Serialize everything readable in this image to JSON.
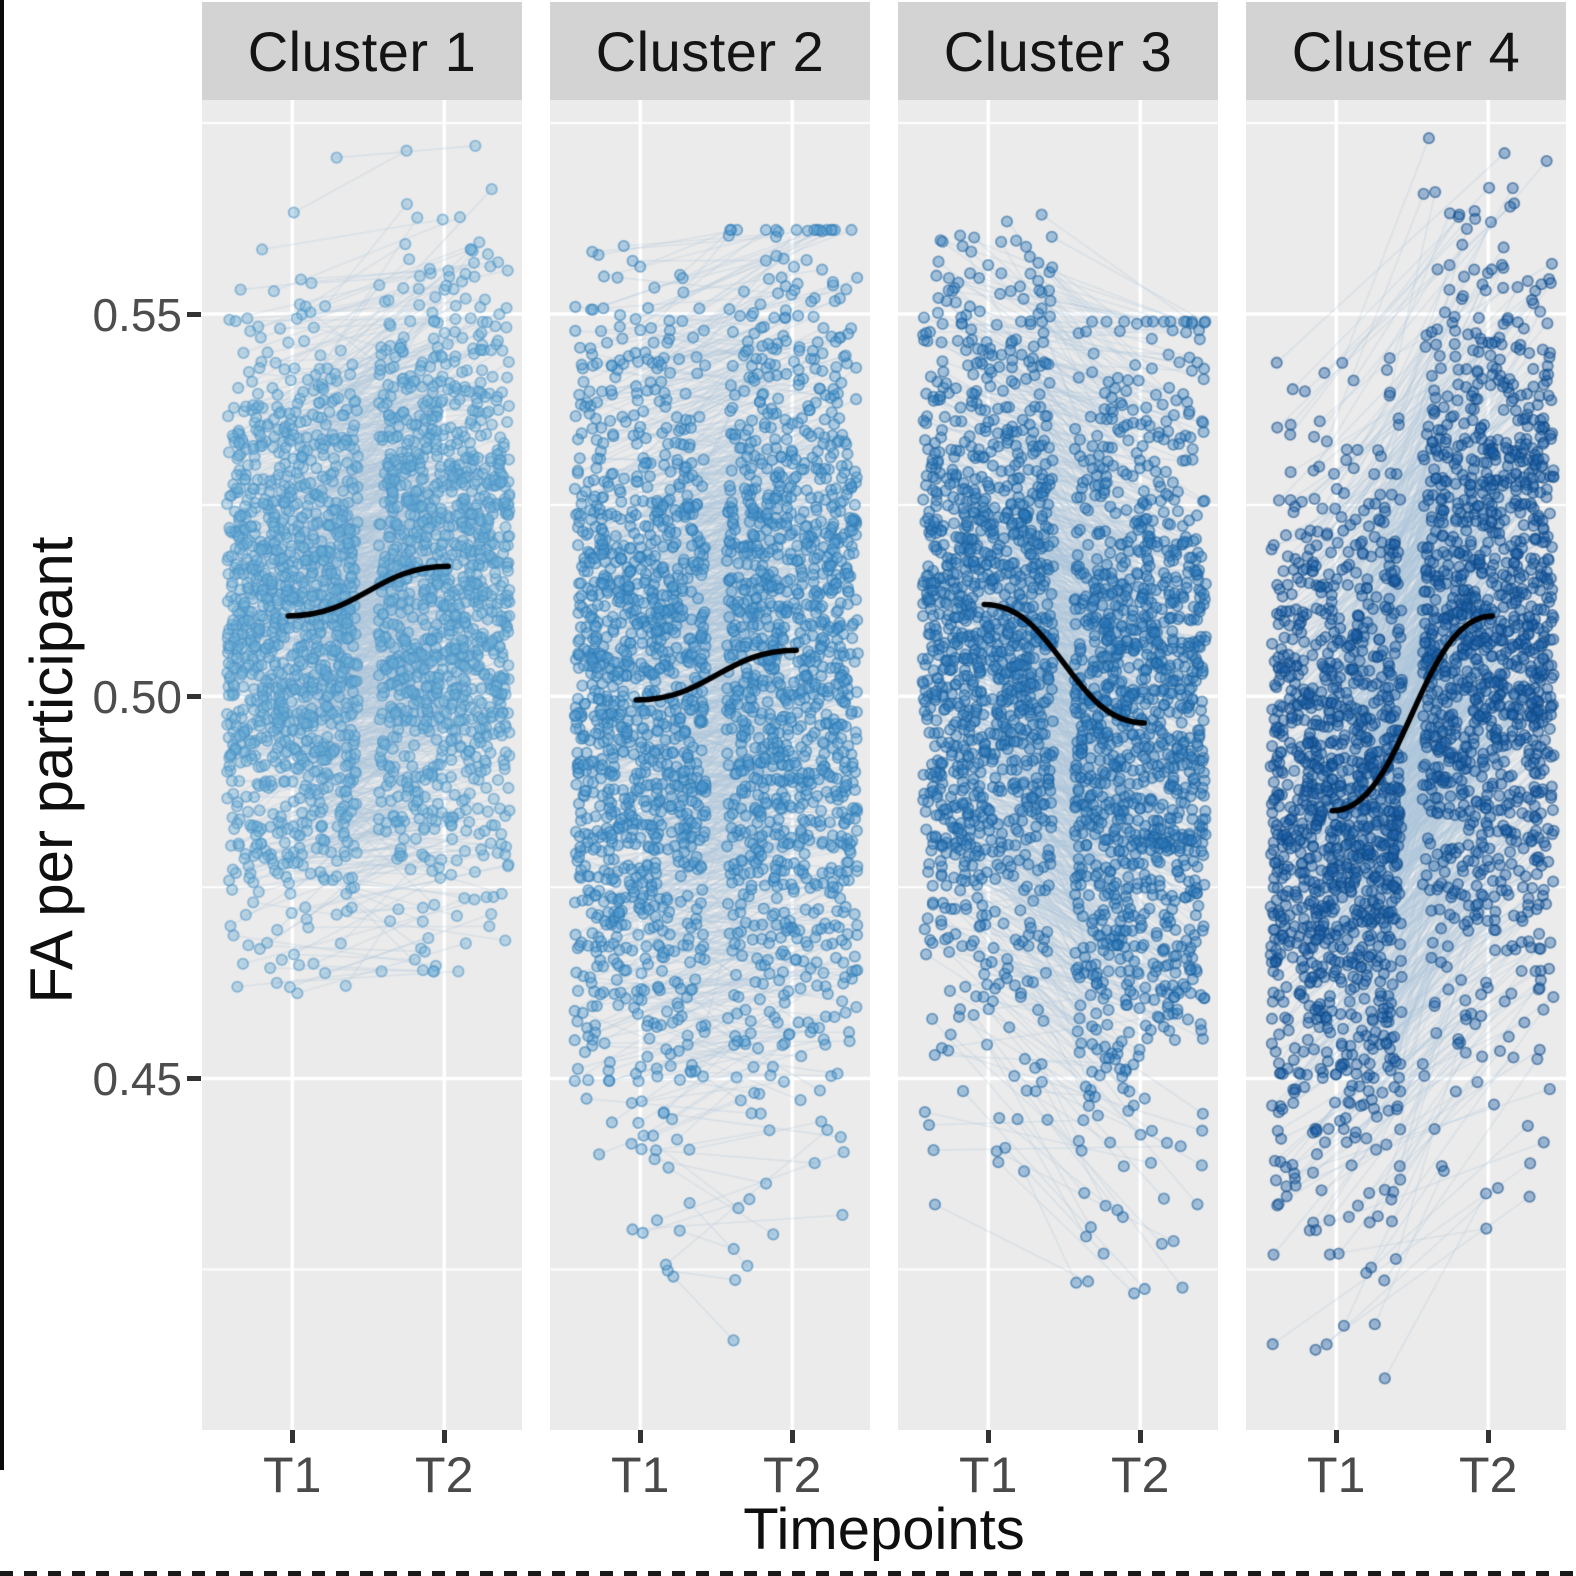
{
  "axes": {
    "y_title": "FA per participant",
    "x_title": "Timepoints"
  },
  "chart_data": {
    "type": "scatter",
    "subtype": "faceted-paired-jitter-with-trend",
    "xlabel": "Timepoints",
    "ylabel": "FA per participant",
    "x_categories": [
      "T1",
      "T2"
    ],
    "y_ticks": [
      {
        "label": "0.55",
        "value": 0.55
      },
      {
        "label": "0.50",
        "value": 0.5
      },
      {
        "label": "0.45",
        "value": 0.45
      }
    ],
    "y_minor_ticks": [
      0.425,
      0.475,
      0.525,
      0.575
    ],
    "y_range": [
      0.404,
      0.578
    ],
    "grid": true,
    "panel_bg": "#ebebeb",
    "grid_color": "#ffffff",
    "trend_color": "#000000",
    "link_color": "rgba(172,196,219,0.28)",
    "x_positions": {
      "T1": 0.282,
      "T2": 0.757
    },
    "jitter_halfwidth_frac": 0.205,
    "point_radius": 5.2,
    "facets": [
      {
        "label": "Cluster 1",
        "color": "#6aaed6",
        "stroke": "#4e93c6",
        "seed": 101,
        "n": 1250,
        "pair_sd": 0.007,
        "t1": {
          "mean": 0.509,
          "sd": 0.019,
          "min": 0.461,
          "max": 0.571
        },
        "t2": {
          "mean": 0.5145,
          "sd": 0.019,
          "min": 0.464,
          "max": 0.572
        },
        "trend": {
          "start": 0.5105,
          "end": 0.517
        }
      },
      {
        "label": "Cluster 2",
        "color": "#4e98d0",
        "stroke": "#2f7cb5",
        "seed": 202,
        "n": 1250,
        "pair_sd": 0.007,
        "t1": {
          "mean": 0.4995,
          "sd": 0.026,
          "min": 0.407,
          "max": 0.559
        },
        "t2": {
          "mean": 0.5045,
          "sd": 0.025,
          "min": 0.41,
          "max": 0.561
        },
        "trend": {
          "start": 0.4995,
          "end": 0.506
        }
      },
      {
        "label": "Cluster 3",
        "color": "#2f7cbe",
        "stroke": "#1d639f",
        "seed": 303,
        "n": 1250,
        "pair_sd": 0.007,
        "t1": {
          "mean": 0.508,
          "sd": 0.025,
          "min": 0.424,
          "max": 0.563
        },
        "t2": {
          "mean": 0.4965,
          "sd": 0.024,
          "min": 0.421,
          "max": 0.549
        },
        "trend": {
          "start": 0.512,
          "end": 0.4965
        }
      },
      {
        "label": "Cluster 4",
        "color": "#1b5fa9",
        "stroke": "#114b86",
        "seed": 404,
        "n": 1250,
        "pair_sd": 0.007,
        "t1": {
          "mean": 0.4835,
          "sd": 0.024,
          "min": 0.405,
          "max": 0.546
        },
        "t2": {
          "mean": 0.507,
          "sd": 0.024,
          "min": 0.411,
          "max": 0.573
        },
        "trend": {
          "start": 0.485,
          "end": 0.5105
        }
      }
    ]
  }
}
